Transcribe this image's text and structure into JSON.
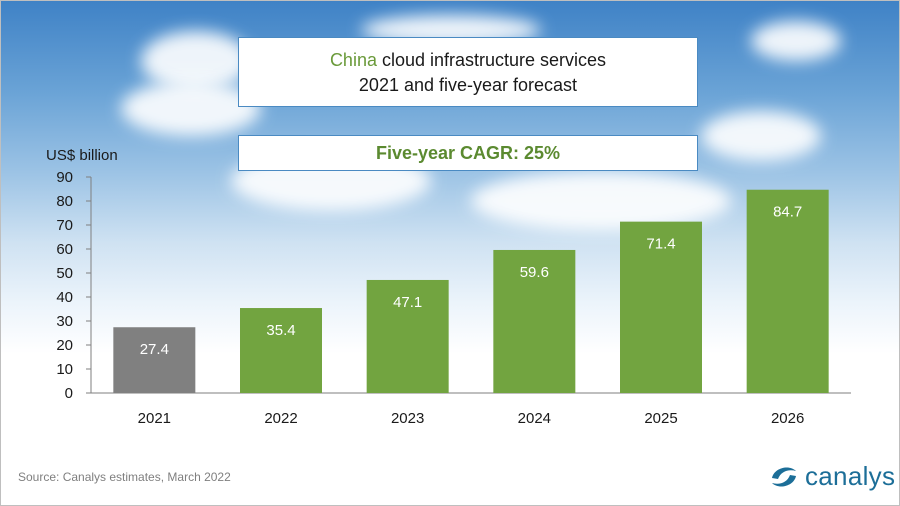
{
  "title": {
    "highlight": "China",
    "rest": " cloud infrastructure services",
    "line2": "2021 and five-year forecast"
  },
  "cagr": "Five-year CAGR: 25%",
  "unit": "US$ billion",
  "source": "Source:  Canalys estimates, March 2022",
  "brand": "canalys",
  "colors": {
    "forecast": "#72a440",
    "actual": "#808080",
    "brand": "#1c6e98",
    "axis": "#7f7f7f"
  },
  "chart_data": {
    "type": "bar",
    "title": "China cloud infrastructure services 2021 and five-year forecast",
    "ylabel": "US$ billion",
    "xlabel": "",
    "categories": [
      "2021",
      "2022",
      "2023",
      "2024",
      "2025",
      "2026"
    ],
    "values": [
      27.4,
      35.4,
      47.1,
      59.6,
      71.4,
      84.7
    ],
    "labels": [
      "27.4",
      "35.4",
      "47.1",
      "59.6",
      "71.4",
      "84.7"
    ],
    "series_kind": [
      "actual",
      "forecast",
      "forecast",
      "forecast",
      "forecast",
      "forecast"
    ],
    "ylim": [
      0,
      90
    ],
    "yticks": [
      0,
      10,
      20,
      30,
      40,
      50,
      60,
      70,
      80,
      90
    ],
    "grid": false,
    "legend": "none"
  }
}
